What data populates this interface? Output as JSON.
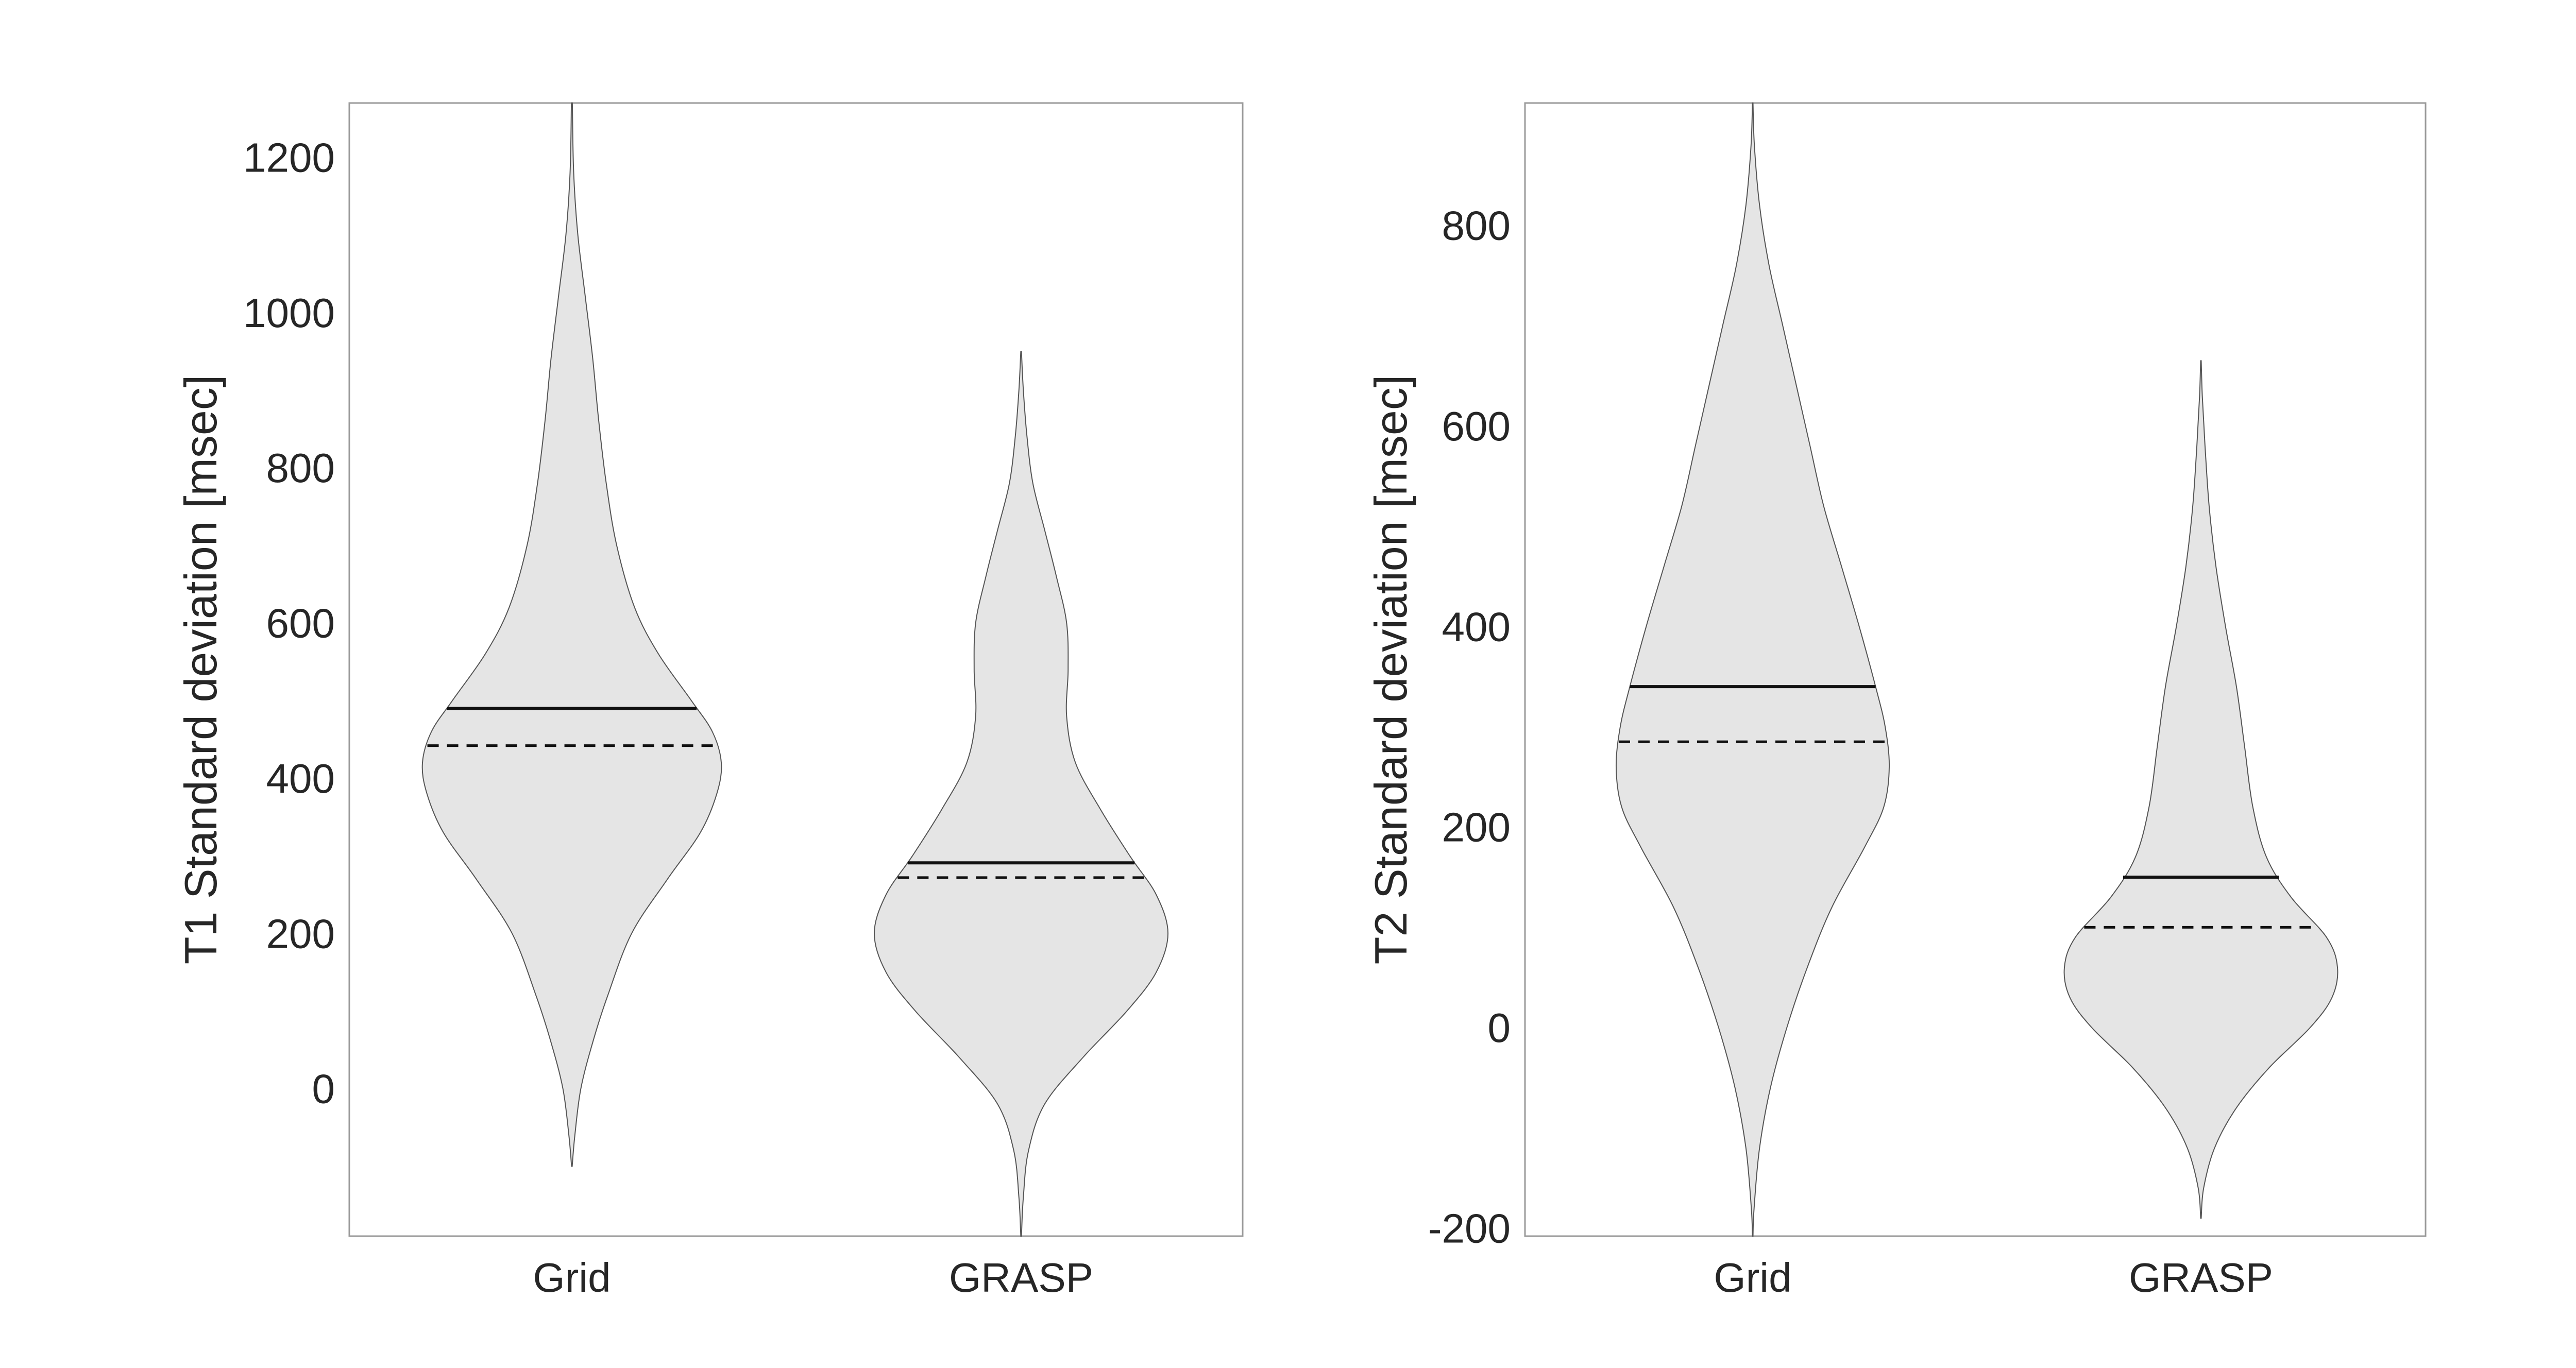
{
  "chart_data": [
    {
      "type": "violin",
      "ylabel": "T1 Standard deviation [msec]",
      "ylim": [
        -190,
        1270
      ],
      "yticks": [
        0,
        200,
        400,
        600,
        800,
        1000,
        1200
      ],
      "yticklabels": [
        "0",
        "200",
        "400",
        "600",
        "800",
        "1000",
        "1200"
      ],
      "categories": [
        "Grid",
        "GRASP"
      ],
      "violins": [
        {
          "category": "Grid",
          "mean": 490,
          "median": 442,
          "profile": [
            [
              -100,
              0.002
            ],
            [
              -60,
              0.02
            ],
            [
              0,
              0.06
            ],
            [
              60,
              0.14
            ],
            [
              120,
              0.24
            ],
            [
              200,
              0.4
            ],
            [
              270,
              0.64
            ],
            [
              330,
              0.86
            ],
            [
              380,
              0.97
            ],
            [
              420,
              1.0
            ],
            [
              460,
              0.94
            ],
            [
              500,
              0.8
            ],
            [
              560,
              0.58
            ],
            [
              620,
              0.42
            ],
            [
              700,
              0.3
            ],
            [
              780,
              0.23
            ],
            [
              860,
              0.18
            ],
            [
              940,
              0.14
            ],
            [
              1020,
              0.09
            ],
            [
              1100,
              0.04
            ],
            [
              1180,
              0.012
            ],
            [
              1270,
              0.003
            ]
          ]
        },
        {
          "category": "GRASP",
          "mean": 291,
          "median": 272,
          "profile": [
            [
              -190,
              0.002
            ],
            [
              -140,
              0.015
            ],
            [
              -80,
              0.05
            ],
            [
              -20,
              0.16
            ],
            [
              40,
              0.42
            ],
            [
              100,
              0.72
            ],
            [
              150,
              0.92
            ],
            [
              200,
              1.0
            ],
            [
              250,
              0.92
            ],
            [
              300,
              0.74
            ],
            [
              360,
              0.54
            ],
            [
              420,
              0.37
            ],
            [
              480,
              0.31
            ],
            [
              540,
              0.32
            ],
            [
              600,
              0.31
            ],
            [
              660,
              0.24
            ],
            [
              720,
              0.16
            ],
            [
              780,
              0.08
            ],
            [
              840,
              0.04
            ],
            [
              900,
              0.015
            ],
            [
              950,
              0.002
            ]
          ]
        }
      ]
    },
    {
      "type": "violin",
      "ylabel": "T2 Standard deviation [msec]",
      "ylim": [
        -208,
        922
      ],
      "yticks": [
        -200,
        0,
        200,
        400,
        600,
        800
      ],
      "yticklabels": [
        "-200",
        "0",
        "200",
        "400",
        "600",
        "800"
      ],
      "categories": [
        "Grid",
        "GRASP"
      ],
      "violins": [
        {
          "category": "Grid",
          "mean": 340,
          "median": 285,
          "profile": [
            [
              -208,
              0.002
            ],
            [
              -180,
              0.01
            ],
            [
              -120,
              0.05
            ],
            [
              -60,
              0.13
            ],
            [
              0,
              0.25
            ],
            [
              60,
              0.4
            ],
            [
              120,
              0.58
            ],
            [
              180,
              0.82
            ],
            [
              220,
              0.96
            ],
            [
              260,
              1.0
            ],
            [
              300,
              0.97
            ],
            [
              340,
              0.9
            ],
            [
              400,
              0.78
            ],
            [
              460,
              0.65
            ],
            [
              520,
              0.52
            ],
            [
              580,
              0.42
            ],
            [
              640,
              0.32
            ],
            [
              700,
              0.22
            ],
            [
              760,
              0.12
            ],
            [
              820,
              0.05
            ],
            [
              880,
              0.012
            ],
            [
              922,
              0.002
            ]
          ]
        },
        {
          "category": "GRASP",
          "mean": 150,
          "median": 100,
          "profile": [
            [
              -190,
              0.002
            ],
            [
              -160,
              0.02
            ],
            [
              -120,
              0.1
            ],
            [
              -80,
              0.26
            ],
            [
              -40,
              0.5
            ],
            [
              0,
              0.8
            ],
            [
              30,
              0.96
            ],
            [
              60,
              1.0
            ],
            [
              90,
              0.92
            ],
            [
              130,
              0.66
            ],
            [
              170,
              0.48
            ],
            [
              220,
              0.38
            ],
            [
              280,
              0.32
            ],
            [
              340,
              0.26
            ],
            [
              400,
              0.18
            ],
            [
              460,
              0.11
            ],
            [
              520,
              0.06
            ],
            [
              580,
              0.03
            ],
            [
              630,
              0.01
            ],
            [
              665,
              0.002
            ]
          ]
        }
      ]
    }
  ]
}
